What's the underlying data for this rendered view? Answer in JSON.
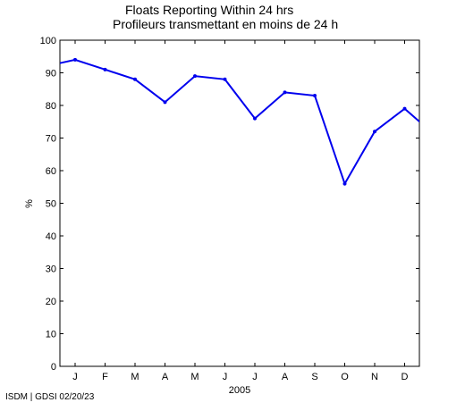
{
  "chart_data": {
    "type": "line",
    "title": "Floats Reporting Within 24 hrs",
    "subtitle": "Profileurs transmettant en moins de 24 h",
    "xlabel": "2005",
    "ylabel": "%",
    "ylim": [
      0,
      100
    ],
    "yticks": [
      0,
      10,
      20,
      30,
      40,
      50,
      60,
      70,
      80,
      90,
      100
    ],
    "xticks": [
      "J",
      "F",
      "M",
      "A",
      "M",
      "J",
      "J",
      "A",
      "S",
      "O",
      "N",
      "D"
    ],
    "grid": false,
    "line_color": "#0000ee",
    "series": [
      {
        "x": [
          "2004-12",
          "2005-01",
          "2005-02",
          "2005-03",
          "2005-04",
          "2005-05",
          "2005-06",
          "2005-07",
          "2005-08",
          "2005-09",
          "2005-10",
          "2005-11",
          "2005-12",
          "2006-01"
        ],
        "values": [
          92,
          94,
          91,
          88,
          81,
          89,
          88,
          76,
          84,
          83,
          56,
          72,
          79,
          71
        ]
      }
    ]
  },
  "footer": "ISDM | GDSI 02/20/23"
}
